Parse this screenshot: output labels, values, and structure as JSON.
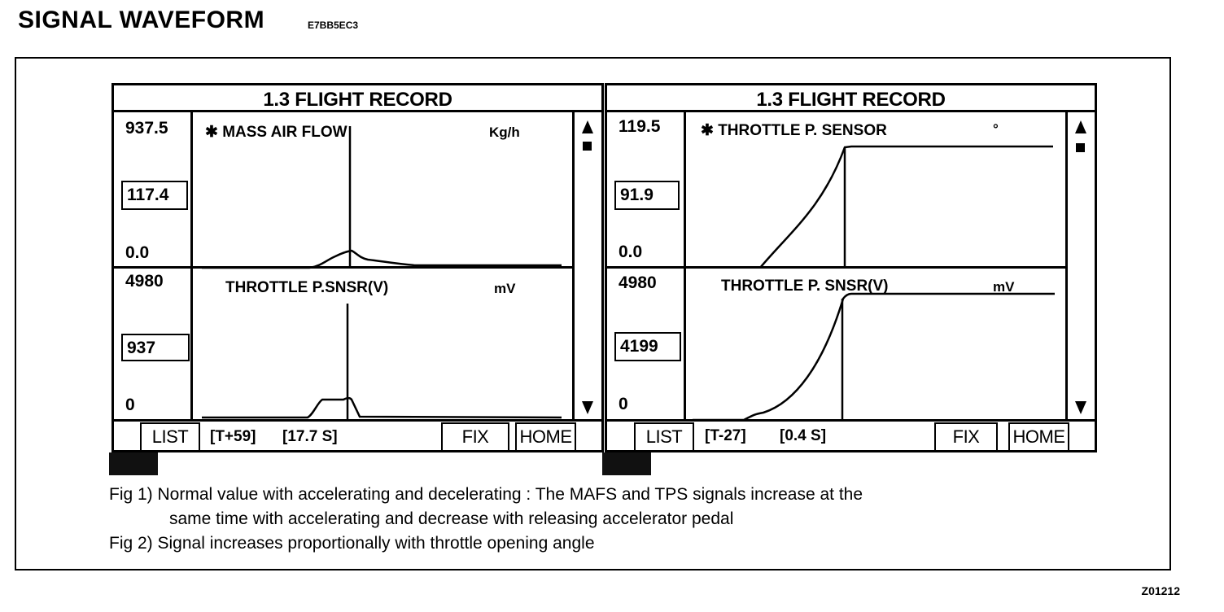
{
  "header": {
    "title": "SIGNAL  WAVEFORM",
    "code": "E7BB5EC3"
  },
  "panels": [
    {
      "title": "1.3 FLIGHT RECORD",
      "top_plot": {
        "max": "937.5",
        "current": "117.4",
        "min": "0.0",
        "label": "✱ MASS AIR FLOW",
        "unit": "Kg/h"
      },
      "bottom_plot": {
        "max": "4980",
        "current": "937",
        "min": "0",
        "label": "THROTTLE P.SNSR(V)",
        "unit": "mV"
      },
      "footer": {
        "list": "LIST",
        "time_index": "[T+59]",
        "time": "[17.7  S]",
        "fix": "FIX",
        "home": "HOME"
      }
    },
    {
      "title": "1.3 FLIGHT RECORD",
      "top_plot": {
        "max": "119.5",
        "current": "91.9",
        "min": "0.0",
        "label": "✱ THROTTLE P. SENSOR",
        "unit": "°"
      },
      "bottom_plot": {
        "max": "4980",
        "current": "4199",
        "min": "0",
        "label": "THROTTLE P. SNSR(V)",
        "unit": "mV"
      },
      "footer": {
        "list": "LIST",
        "time_index": "[T-27]",
        "time": "[0.4 S]",
        "fix": "FIX",
        "home": "HOME"
      }
    }
  ],
  "captions": [
    "Fig 1) Normal value with accelerating and decelerating : The MAFS and TPS signals increase at the",
    "same time with accelerating and decrease with releasing accelerator pedal",
    "Fig 2) Signal increases proportionally with throttle opening angle"
  ],
  "figure_id": "Z01212",
  "colors": {
    "ink": "#000000",
    "paper": "#ffffff"
  },
  "icons": [
    "arrow-up-icon",
    "square-icon",
    "arrow-down-icon"
  ]
}
